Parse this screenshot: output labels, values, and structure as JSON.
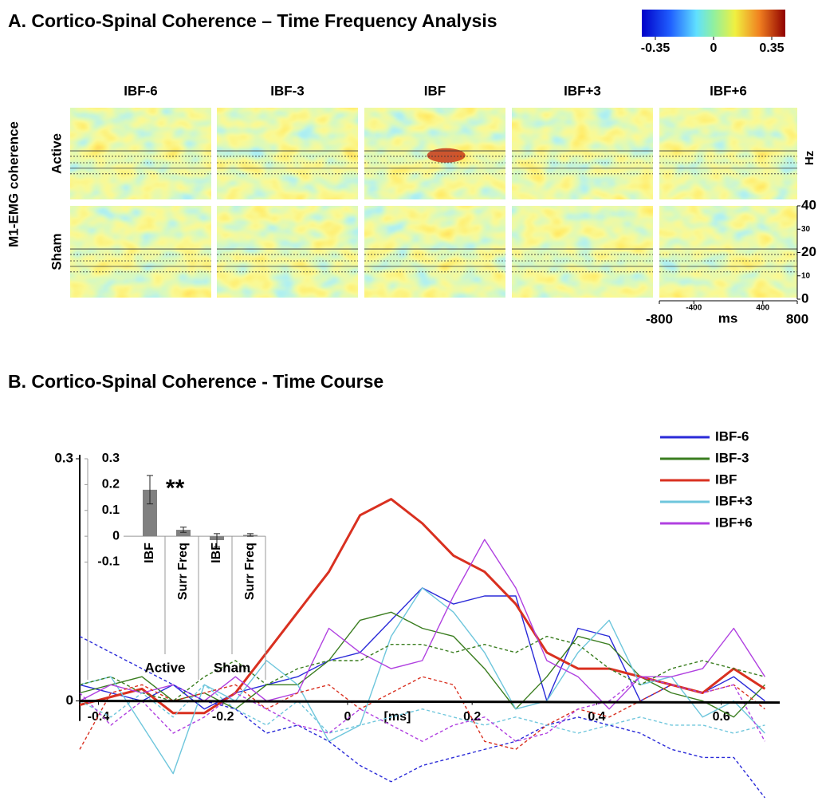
{
  "panel_a": {
    "title": "A. Cortico-Spinal Coherence – Time Frequency Analysis",
    "colorbar": {
      "lim": [
        -0.35,
        0.35
      ],
      "ticks": [
        -0.35,
        0,
        0.35
      ]
    },
    "columns": [
      "IBF-6",
      "IBF-3",
      "IBF",
      "IBF+3",
      "IBF+6"
    ],
    "rows": [
      "Active",
      "Sham"
    ],
    "row_axis_label": "M1-EMG coherence",
    "freq_axis": {
      "label": "Hz",
      "lim": [
        0,
        40
      ],
      "ticks": [
        0,
        10,
        20,
        30,
        40
      ]
    },
    "time_axis": {
      "label": "ms",
      "lim": [
        -800,
        800
      ],
      "ticks": [
        -800,
        -400,
        400,
        800
      ]
    }
  },
  "chart_data": [
    {
      "type": "line",
      "title": "B. Cortico-Spinal Coherence - Time Course",
      "x_label": "[ms]",
      "x": [
        -0.43,
        -0.38,
        -0.33,
        -0.28,
        -0.23,
        -0.18,
        -0.13,
        -0.08,
        -0.03,
        0.02,
        0.07,
        0.12,
        0.17,
        0.22,
        0.27,
        0.32,
        0.37,
        0.42,
        0.47,
        0.52,
        0.57,
        0.62,
        0.67
      ],
      "xlim": [
        -0.43,
        0.69
      ],
      "xticks": [
        -0.4,
        -0.2,
        0,
        0.2,
        0.4,
        0.6
      ],
      "ylim": [
        -0.12,
        0.3
      ],
      "yticks": [
        0,
        0.3
      ],
      "legend": "upper right",
      "series": [
        {
          "name": "IBF-6",
          "color": "#2a2ad8",
          "values": [
            0.02,
            0.01,
            0.0,
            0.02,
            -0.01,
            0.01,
            0.02,
            0.03,
            0.05,
            0.06,
            0.1,
            0.14,
            0.12,
            0.13,
            0.13,
            0.0,
            0.09,
            0.08,
            0.0,
            0.02,
            0.01,
            0.03,
            0.0
          ]
        },
        {
          "name": "IBF-3",
          "color": "#3a7d1f",
          "values": [
            0.01,
            0.02,
            0.03,
            0.0,
            0.01,
            -0.01,
            0.02,
            0.02,
            0.05,
            0.1,
            0.11,
            0.09,
            0.08,
            0.04,
            -0.01,
            0.03,
            0.08,
            0.07,
            0.03,
            0.01,
            0.0,
            -0.02,
            0.02
          ]
        },
        {
          "name": "IBF",
          "color": "#d93020",
          "width": 3,
          "values": [
            -0.005,
            0.005,
            0.015,
            -0.015,
            -0.015,
            0.01,
            0.06,
            0.11,
            0.16,
            0.23,
            0.25,
            0.22,
            0.18,
            0.16,
            0.12,
            0.06,
            0.04,
            0.04,
            0.03,
            0.02,
            0.01,
            0.04,
            0.015
          ]
        },
        {
          "name": "IBF+3",
          "color": "#6ec6dc",
          "values": [
            0.02,
            0.03,
            -0.03,
            -0.09,
            0.02,
            0.0,
            0.05,
            0.02,
            -0.05,
            -0.03,
            0.08,
            0.14,
            0.11,
            0.06,
            -0.01,
            0.0,
            0.06,
            0.1,
            0.02,
            0.03,
            -0.02,
            0.0,
            -0.04
          ]
        },
        {
          "name": "IBF+6",
          "color": "#b040e0",
          "values": [
            0.0,
            0.02,
            0.01,
            0.02,
            0.0,
            0.03,
            0.0,
            0.01,
            0.09,
            0.06,
            0.04,
            0.05,
            0.13,
            0.2,
            0.14,
            0.05,
            0.03,
            -0.01,
            0.03,
            0.03,
            0.04,
            0.09,
            0.03
          ]
        },
        {
          "color": "#2a2ad8",
          "dash": true,
          "values": [
            0.08,
            0.06,
            0.04,
            0.02,
            0.0,
            -0.01,
            -0.04,
            -0.03,
            -0.05,
            -0.08,
            -0.1,
            -0.08,
            -0.07,
            -0.06,
            -0.05,
            -0.03,
            -0.02,
            -0.03,
            -0.04,
            -0.06,
            -0.07,
            -0.07,
            -0.12
          ]
        },
        {
          "color": "#3a7d1f",
          "dash": true,
          "values": [
            0.02,
            0.03,
            0.01,
            0.0,
            0.03,
            0.05,
            0.02,
            0.04,
            0.05,
            0.05,
            0.07,
            0.07,
            0.06,
            0.07,
            0.06,
            0.08,
            0.07,
            0.04,
            0.02,
            0.04,
            0.05,
            0.04,
            0.03
          ]
        },
        {
          "color": "#d93020",
          "dash": true,
          "values": [
            -0.06,
            0.01,
            0.02,
            0.0,
            0.01,
            0.02,
            -0.01,
            0.01,
            0.02,
            -0.01,
            0.01,
            0.03,
            0.02,
            -0.05,
            -0.06,
            -0.03,
            -0.01,
            -0.02,
            0.0,
            0.02,
            0.01,
            0.02,
            -0.01
          ]
        },
        {
          "color": "#6ec6dc",
          "dash": true,
          "values": [
            0.0,
            -0.02,
            0.01,
            -0.02,
            0.02,
            -0.01,
            -0.03,
            0.0,
            -0.04,
            -0.03,
            -0.02,
            -0.01,
            -0.02,
            -0.03,
            -0.02,
            -0.03,
            -0.04,
            -0.03,
            -0.02,
            -0.03,
            -0.03,
            -0.04,
            -0.03
          ]
        },
        {
          "color": "#b040e0",
          "dash": true,
          "values": [
            0.01,
            -0.03,
            0.0,
            -0.04,
            -0.02,
            0.01,
            -0.01,
            -0.03,
            -0.04,
            -0.01,
            -0.03,
            -0.05,
            -0.03,
            -0.02,
            -0.05,
            -0.04,
            -0.01,
            0.0,
            0.03,
            0.02,
            0.01,
            0.02,
            -0.05
          ]
        }
      ]
    },
    {
      "type": "bar",
      "categories": [
        "IBF",
        "Surr Freq",
        "IBF",
        "Surr Freq"
      ],
      "groups": [
        "Active",
        "Sham"
      ],
      "values": [
        0.18,
        0.025,
        -0.015,
        0.005
      ],
      "errors": [
        0.055,
        0.01,
        0.025,
        0.005
      ],
      "color": "#808080",
      "ylim": [
        -0.12,
        0.3
      ],
      "yticks": [
        0.3,
        0.2,
        0.1,
        0,
        -0.1
      ],
      "annotation": "**"
    }
  ]
}
